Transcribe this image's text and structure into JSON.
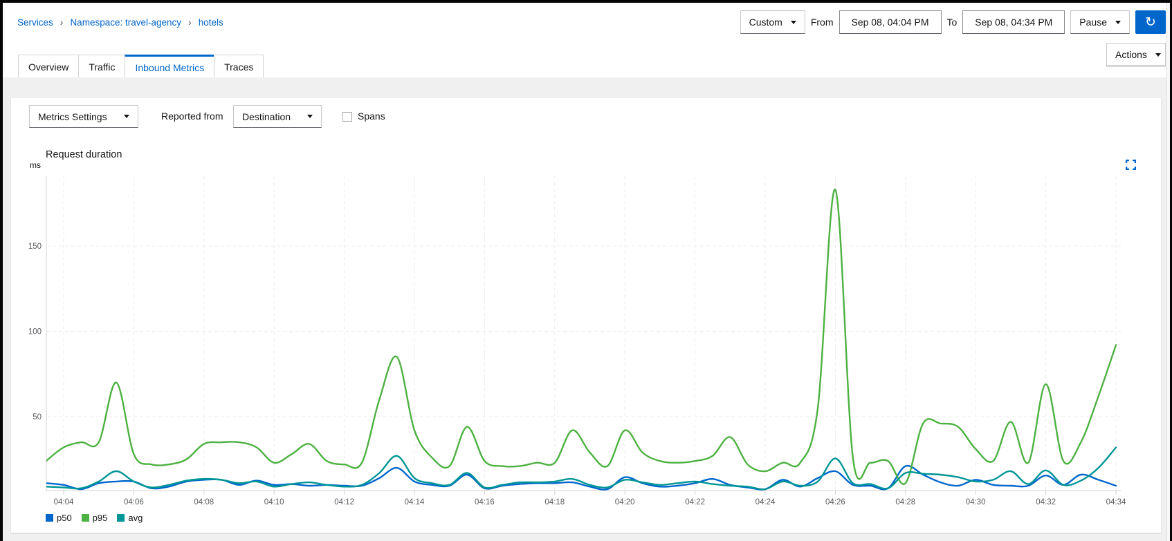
{
  "breadcrumb": {
    "separator": "›",
    "items": [
      "Services",
      "Namespace: travel-agency",
      "hotels"
    ]
  },
  "toolbar": {
    "duration_value": "Custom",
    "from_label": "From",
    "from_value": "Sep 08, 04:04 PM",
    "to_label": "To",
    "to_value": "Sep 08, 04:34 PM",
    "pause_label": "Pause",
    "refresh_icon": "sync-icon",
    "refresh_glyph": "↻",
    "refresh_color": "#0066cc"
  },
  "actions": {
    "label": "Actions"
  },
  "tabs": [
    {
      "label": "Overview",
      "active": false
    },
    {
      "label": "Traffic",
      "active": false
    },
    {
      "label": "Inbound Metrics",
      "active": true
    },
    {
      "label": "Traces",
      "active": false
    }
  ],
  "controls": {
    "metrics_settings_label": "Metrics Settings",
    "reported_from_label": "Reported from",
    "reported_from_value": "Destination",
    "spans_label": "Spans",
    "spans_checked": false
  },
  "ui_colors": {
    "link": "#0066cc",
    "accent": "#0066cc",
    "active_tab": "#0066cc"
  },
  "chart_data": {
    "type": "line",
    "title": "Request duration",
    "ylabel": "ms",
    "xlabel": "",
    "grid": true,
    "legend_position": "bottom-left",
    "x_tick_labels": [
      "04:04",
      "04:06",
      "04:08",
      "04:10",
      "04:12",
      "04:14",
      "04:16",
      "04:18",
      "04:20",
      "04:22",
      "04:24",
      "04:26",
      "04:28",
      "04:30",
      "04:32",
      "04:34"
    ],
    "y_ticks": [
      50,
      100,
      150
    ],
    "y_domain": [
      6,
      192
    ],
    "x_domain_minutes": [
      -0.5,
      30
    ],
    "tick_interval_minutes": 2,
    "grid_color": "#ececec",
    "axis_color": "#d2d2d2",
    "t_minutes": [
      -0.5,
      0,
      0.5,
      1,
      1.5,
      2,
      2.5,
      3,
      3.5,
      4,
      4.5,
      5,
      5.5,
      6,
      6.5,
      7,
      7.5,
      8,
      8.5,
      9,
      9.5,
      10,
      10.5,
      11,
      11.5,
      12,
      12.5,
      13,
      13.5,
      14,
      14.5,
      15,
      15.5,
      16,
      16.5,
      17,
      17.5,
      18,
      18.5,
      19,
      19.5,
      20,
      20.5,
      21,
      21.5,
      22,
      22.5,
      23,
      23.5,
      24,
      24.5,
      25,
      25.5,
      26,
      26.5,
      27,
      27.5,
      28,
      28.5,
      29,
      29.5,
      30
    ],
    "series": [
      {
        "name": "p50",
        "color": "#0066CC",
        "values": [
          11,
          10,
          7.5,
          11,
          12,
          12,
          8,
          9,
          12,
          13,
          13,
          10,
          12.5,
          10,
          10.5,
          9.5,
          10,
          9.5,
          9.5,
          14,
          20,
          12,
          10,
          9.5,
          16,
          8,
          9.5,
          10.5,
          11,
          11,
          11.5,
          9,
          7.5,
          14.5,
          11,
          9,
          9.5,
          11,
          13.5,
          10,
          8.5,
          7.5,
          13,
          9,
          14,
          18,
          10,
          9.5,
          8,
          21,
          16,
          11.5,
          9.5,
          13,
          10,
          9.5,
          9.5,
          15.5,
          10,
          16,
          13,
          9.5
        ]
      },
      {
        "name": "p95",
        "color": "#4CB140",
        "values": [
          24,
          32,
          35,
          35,
          70,
          28,
          22,
          22,
          25,
          34,
          35,
          35,
          32,
          23,
          28,
          34,
          24,
          22,
          23,
          60,
          85,
          42,
          26,
          21,
          44,
          24,
          21,
          21,
          23,
          23,
          42,
          29,
          21,
          42,
          29,
          24,
          23,
          24,
          27,
          38,
          22,
          18,
          23,
          23,
          55,
          183,
          26,
          23,
          24,
          11,
          46,
          46,
          44,
          31,
          24,
          47,
          23,
          69,
          24,
          35,
          62,
          92
        ]
      },
      {
        "name": "avg",
        "color": "#009596",
        "values": [
          9,
          8.5,
          8,
          12,
          18,
          12,
          8.5,
          10,
          12.5,
          13.5,
          13,
          11,
          12,
          9,
          10.5,
          11.5,
          10,
          9,
          10,
          17,
          27,
          14,
          11,
          10,
          17,
          8.5,
          10,
          11.5,
          11.5,
          12,
          13.5,
          10,
          8.5,
          13,
          11.5,
          10,
          11,
          12,
          10.5,
          9.5,
          9,
          7.5,
          12,
          9.5,
          12,
          25.5,
          11,
          10.5,
          8,
          17,
          16.5,
          16,
          14.5,
          12,
          13,
          18,
          10.5,
          18.5,
          10,
          12.5,
          20,
          32
        ]
      }
    ]
  }
}
